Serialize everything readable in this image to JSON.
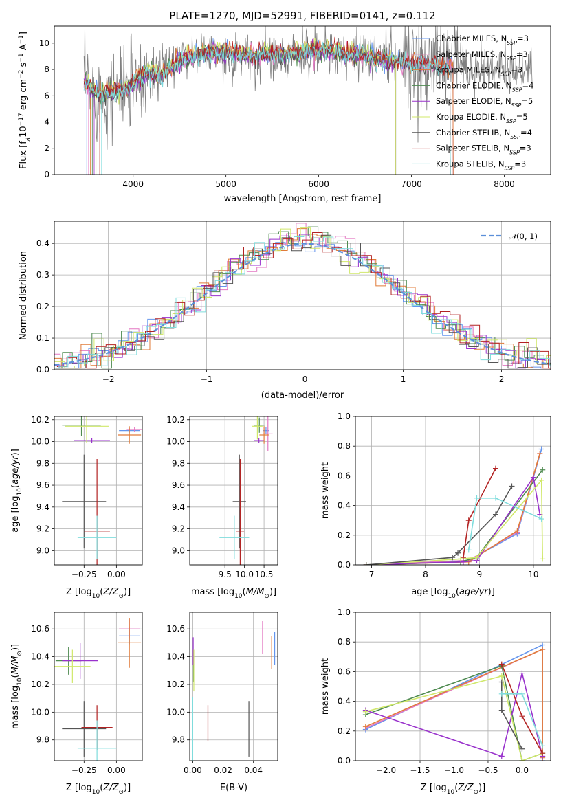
{
  "title": "PLATE=1270, MJD=52991, FIBERID=0141, z=0.112",
  "colors": {
    "chabrier_miles": "#6495ED",
    "salpeter_miles": "#E377C2",
    "kroupa_miles": "#E07B39",
    "chabrier_elodie": "#4E8A50",
    "salpeter_elodie": "#9932CC",
    "kroupa_elodie": "#D0E86A",
    "chabrier_stelib": "#555555",
    "salpeter_stelib": "#B22222",
    "kroupa_stelib": "#7FDCDC",
    "gaussian": "#5B8FD9",
    "data_spectrum": "#808080"
  },
  "chart_data": [
    {
      "id": "spectrum",
      "type": "line",
      "xlabel": "wavelength [Angstrom, rest frame]",
      "ylabel": "Flux [f",
      "xlim": [
        3150,
        8500
      ],
      "ylim": [
        0,
        11.3
      ],
      "xticks": [
        "4000",
        "5000",
        "6000",
        "7000",
        "8000"
      ],
      "yticks": [
        "0",
        "2",
        "4",
        "6",
        "8",
        "10"
      ],
      "legend": [
        {
          "label": "Chabrier MILES, N",
          "sub": "SSP",
          "suffix": "=3"
        },
        {
          "label": "Salpeter MILES, N",
          "sub": "SSP",
          "suffix": "=3"
        },
        {
          "label": "Kroupa MILES, N",
          "sub": "SSP",
          "suffix": "=3"
        },
        {
          "label": "Chabrier ELODIE, N",
          "sub": "SSP",
          "suffix": "=4"
        },
        {
          "label": "Salpeter ELODIE, N",
          "sub": "SSP",
          "suffix": "=5"
        },
        {
          "label": "Kroupa ELODIE, N",
          "sub": "SSP",
          "suffix": "=5"
        },
        {
          "label": "Chabrier STELIB, N",
          "sub": "SSP",
          "suffix": "=4"
        },
        {
          "label": "Salpeter STELIB, N",
          "sub": "SSP",
          "suffix": "=3"
        },
        {
          "label": "Kroupa STELIB, N",
          "sub": "SSP",
          "suffix": "=3"
        }
      ],
      "model_continuum": [
        [
          3470,
          7.2
        ],
        [
          3550,
          6.5
        ],
        [
          3650,
          6.0
        ],
        [
          3750,
          6.3
        ],
        [
          3850,
          6.4
        ],
        [
          3950,
          6.6
        ],
        [
          4050,
          7.3
        ],
        [
          4150,
          7.8
        ],
        [
          4300,
          7.5
        ],
        [
          4500,
          8.6
        ],
        [
          4700,
          9.1
        ],
        [
          4800,
          9.3
        ],
        [
          5000,
          9.3
        ],
        [
          5200,
          9.1
        ],
        [
          5400,
          9.2
        ],
        [
          5600,
          9.1
        ],
        [
          5800,
          9.3
        ],
        [
          6000,
          9.5
        ],
        [
          6200,
          9.4
        ],
        [
          6400,
          9.2
        ],
        [
          6600,
          8.9
        ],
        [
          6800,
          8.6
        ],
        [
          7000,
          8.5
        ],
        [
          7200,
          8.3
        ],
        [
          7400,
          8.2
        ]
      ],
      "data_continuum": [
        [
          3470,
          7.3
        ],
        [
          3600,
          6.0
        ],
        [
          3800,
          6.2
        ],
        [
          4000,
          6.8
        ],
        [
          4200,
          7.6
        ],
        [
          4400,
          8.3
        ],
        [
          4600,
          8.8
        ],
        [
          4800,
          9.3
        ],
        [
          5000,
          9.2
        ],
        [
          5300,
          9.1
        ],
        [
          5600,
          9.2
        ],
        [
          6000,
          9.4
        ],
        [
          6400,
          9.2
        ],
        [
          6800,
          8.8
        ],
        [
          7200,
          8.4
        ],
        [
          7600,
          8.2
        ],
        [
          8000,
          8.0
        ],
        [
          8300,
          7.9
        ]
      ]
    },
    {
      "id": "residuals",
      "type": "histogram",
      "xlabel": "(data-model)/error",
      "ylabel": "Normed distribution",
      "xlim": [
        -2.55,
        2.5
      ],
      "ylim": [
        0,
        0.47
      ],
      "xticks": [
        "−2",
        "−1",
        "0",
        "1",
        "2"
      ],
      "yticks": [
        "0.0",
        "0.1",
        "0.2",
        "0.3",
        "0.4"
      ],
      "legend_label": "(0, 1)",
      "gaussian": {
        "mean": 0,
        "sigma": 1
      },
      "bin_width": 0.1
    },
    {
      "id": "age-vs-Z",
      "type": "errorbar",
      "xlabel": "Z [log",
      "ylabel": "age  [log",
      "xlim": [
        -0.48,
        0.2
      ],
      "ylim": [
        8.87,
        10.23
      ],
      "xticks": [
        "−0.25",
        "0.00"
      ],
      "yticks": [
        "9.0",
        "9.2",
        "9.4",
        "9.6",
        "9.8",
        "10.0",
        "10.2"
      ],
      "points": [
        {
          "key": "chabrier_miles",
          "x": 0.1,
          "y": 10.1,
          "xerr": 0.08,
          "yerr": 0.02
        },
        {
          "key": "salpeter_miles",
          "x": 0.14,
          "y": 10.11,
          "xerr": 0.06,
          "yerr": 0.02
        },
        {
          "key": "kroupa_miles",
          "x": 0.1,
          "y": 10.06,
          "xerr": 0.09,
          "yerr": 0.08
        },
        {
          "key": "chabrier_elodie",
          "x": -0.27,
          "y": 10.15,
          "xerr": 0.15,
          "yerr": 0.1
        },
        {
          "key": "salpeter_elodie",
          "x": -0.19,
          "y": 10.01,
          "xerr": 0.14,
          "yerr": 0.02
        },
        {
          "key": "kroupa_elodie",
          "x": -0.23,
          "y": 10.14,
          "xerr": 0.17,
          "yerr": 0.15
        },
        {
          "key": "chabrier_stelib",
          "x": -0.25,
          "y": 9.45,
          "xerr": 0.17,
          "yerr": 0.43
        },
        {
          "key": "salpeter_stelib",
          "x": -0.15,
          "y": 9.18,
          "xerr": 0.1,
          "yerr": 0.66
        },
        {
          "key": "kroupa_stelib",
          "x": -0.15,
          "y": 9.12,
          "xerr": 0.15,
          "yerr": 0.2
        }
      ]
    },
    {
      "id": "age-vs-mass",
      "type": "errorbar",
      "xlabel": "mass [log",
      "ylabel": "",
      "xlim": [
        8.6,
        10.85
      ],
      "ylim": [
        8.87,
        10.23
      ],
      "xticks": [
        "9.5",
        "10.0",
        "10.5"
      ],
      "yticks": [
        "9.0",
        "9.2",
        "9.4",
        "9.6",
        "9.8",
        "10.0",
        "10.2"
      ],
      "points": [
        {
          "key": "chabrier_miles",
          "x": 10.55,
          "y": 10.1,
          "xerr": 0.08,
          "yerr": 0.03
        },
        {
          "key": "salpeter_miles",
          "x": 10.6,
          "y": 10.07,
          "xerr": 0.12,
          "yerr": 0.16
        },
        {
          "key": "kroupa_miles",
          "x": 10.5,
          "y": 10.06,
          "xerr": 0.12,
          "yerr": 0.08
        },
        {
          "key": "chabrier_elodie",
          "x": 10.38,
          "y": 10.15,
          "xerr": 0.13,
          "yerr": 0.07
        },
        {
          "key": "salpeter_elodie",
          "x": 10.37,
          "y": 10.01,
          "xerr": 0.12,
          "yerr": 0.02
        },
        {
          "key": "kroupa_elodie",
          "x": 10.33,
          "y": 10.14,
          "xerr": 0.13,
          "yerr": 0.12
        },
        {
          "key": "chabrier_stelib",
          "x": 9.87,
          "y": 9.45,
          "xerr": 0.17,
          "yerr": 0.43
        },
        {
          "key": "salpeter_stelib",
          "x": 9.89,
          "y": 9.18,
          "xerr": 0.1,
          "yerr": 0.66
        },
        {
          "key": "kroupa_stelib",
          "x": 9.74,
          "y": 9.12,
          "xerr": 0.38,
          "yerr": 0.2
        }
      ]
    },
    {
      "id": "mass-weight-vs-age",
      "type": "line",
      "xlabel": "age  [log",
      "ylabel": "mass weight",
      "xlim": [
        6.7,
        10.32
      ],
      "ylim": [
        0,
        1
      ],
      "xticks": [
        "7",
        "8",
        "9",
        "10"
      ],
      "yticks": [
        "0.0",
        "0.2",
        "0.4",
        "0.6",
        "0.8",
        "1.0"
      ],
      "series": [
        {
          "key": "chabrier_miles",
          "x": [
            6.9,
            8.8,
            9.7,
            10.15
          ],
          "y": [
            0.0,
            0.03,
            0.21,
            0.78
          ]
        },
        {
          "key": "salpeter_miles",
          "x": [
            6.9,
            8.8,
            9.7,
            10.12
          ],
          "y": [
            0.0,
            0.03,
            0.22,
            0.75
          ]
        },
        {
          "key": "kroupa_miles",
          "x": [
            6.9,
            8.8,
            9.7,
            10.12
          ],
          "y": [
            0.0,
            0.02,
            0.23,
            0.75
          ]
        },
        {
          "key": "chabrier_elodie",
          "x": [
            6.9,
            8.65,
            8.95,
            10.17
          ],
          "y": [
            0.0,
            0.02,
            0.05,
            0.64
          ]
        },
        {
          "key": "salpeter_elodie",
          "x": [
            6.9,
            8.7,
            8.95,
            10.0,
            10.12
          ],
          "y": [
            0.0,
            0.02,
            0.03,
            0.59,
            0.34
          ]
        },
        {
          "key": "kroupa_elodie",
          "x": [
            6.9,
            8.65,
            8.95,
            10.15,
            10.17
          ],
          "y": [
            0.0,
            0.04,
            0.05,
            0.57,
            0.04
          ]
        },
        {
          "key": "chabrier_stelib",
          "x": [
            6.9,
            8.5,
            8.6,
            9.3,
            9.6
          ],
          "y": [
            0.0,
            0.05,
            0.08,
            0.34,
            0.53
          ]
        },
        {
          "key": "salpeter_stelib",
          "x": [
            8.7,
            8.8,
            9.3
          ],
          "y": [
            0.05,
            0.3,
            0.65
          ]
        },
        {
          "key": "kroupa_stelib",
          "x": [
            8.8,
            8.95,
            9.3,
            10.15
          ],
          "y": [
            0.1,
            0.45,
            0.45,
            0.31
          ]
        }
      ]
    },
    {
      "id": "mass-vs-Z",
      "type": "errorbar",
      "xlabel": "Z [log",
      "ylabel": "mass [log",
      "xlim": [
        -0.48,
        0.2
      ],
      "ylim": [
        9.65,
        10.72
      ],
      "xticks": [
        "−0.25",
        "0.00"
      ],
      "yticks": [
        "9.8",
        "10.0",
        "10.2",
        "10.4",
        "10.6"
      ],
      "points": [
        {
          "key": "chabrier_miles",
          "x": 0.1,
          "y": 10.55,
          "xerr": 0.08,
          "yerr": 0.06
        },
        {
          "key": "salpeter_miles",
          "x": 0.1,
          "y": 10.6,
          "xerr": 0.08,
          "yerr": 0.07
        },
        {
          "key": "kroupa_miles",
          "x": 0.1,
          "y": 10.5,
          "xerr": 0.09,
          "yerr": 0.18
        },
        {
          "key": "chabrier_elodie",
          "x": -0.37,
          "y": 10.37,
          "xerr": 0.1,
          "yerr": 0.1
        },
        {
          "key": "salpeter_elodie",
          "x": -0.28,
          "y": 10.37,
          "xerr": 0.14,
          "yerr": 0.13
        },
        {
          "key": "kroupa_elodie",
          "x": -0.34,
          "y": 10.33,
          "xerr": 0.14,
          "yerr": 0.12
        },
        {
          "key": "chabrier_stelib",
          "x": -0.25,
          "y": 9.88,
          "xerr": 0.17,
          "yerr": 0.2
        },
        {
          "key": "salpeter_stelib",
          "x": -0.15,
          "y": 9.89,
          "xerr": 0.12,
          "yerr": 0.16
        },
        {
          "key": "kroupa_stelib",
          "x": -0.15,
          "y": 9.74,
          "xerr": 0.15,
          "yerr": 0.2
        }
      ]
    },
    {
      "id": "mass-vs-ebv",
      "type": "errorbar",
      "xlabel": "E(B-V)",
      "ylabel": "",
      "xlim": [
        -0.002,
        0.056
      ],
      "ylim": [
        9.65,
        10.72
      ],
      "xticks": [
        "0.00",
        "0.02",
        "0.04"
      ],
      "yticks": [
        "9.8",
        "10.0",
        "10.2",
        "10.4",
        "10.6"
      ],
      "points": [
        {
          "key": "chabrier_miles",
          "x": 0.054,
          "y": 10.46,
          "xerr": 0,
          "yerr": 0.12
        },
        {
          "key": "salpeter_miles",
          "x": 0.046,
          "y": 10.54,
          "xerr": 0,
          "yerr": 0.12
        },
        {
          "key": "kroupa_miles",
          "x": 0.052,
          "y": 10.43,
          "xerr": 0,
          "yerr": 0.12
        },
        {
          "key": "chabrier_elodie",
          "x": 0.0005,
          "y": 10.32,
          "xerr": 0,
          "yerr": 0.1
        },
        {
          "key": "salpeter_elodie",
          "x": 0.0003,
          "y": 10.44,
          "xerr": 0,
          "yerr": 0.1
        },
        {
          "key": "kroupa_elodie",
          "x": 0.0007,
          "y": 10.3,
          "xerr": 0,
          "yerr": 0.15
        },
        {
          "key": "chabrier_stelib",
          "x": 0.037,
          "y": 9.88,
          "xerr": 0,
          "yerr": 0.2
        },
        {
          "key": "salpeter_stelib",
          "x": 0.01,
          "y": 9.92,
          "xerr": 0,
          "yerr": 0.13
        },
        {
          "key": "kroupa_stelib",
          "x": 0.0,
          "y": 9.83,
          "xerr": 0,
          "yerr": 0.28
        }
      ]
    },
    {
      "id": "mass-weight-vs-Z",
      "type": "line",
      "xlabel": "Z [log",
      "ylabel": "mass weight",
      "xlim": [
        -2.45,
        0.42
      ],
      "ylim": [
        0,
        1
      ],
      "xticks": [
        "−2.0",
        "−1.5",
        "−1.0",
        "−0.5",
        "0.0"
      ],
      "yticks": [
        "0.0",
        "0.2",
        "0.4",
        "0.6",
        "0.8",
        "1.0"
      ],
      "series": [
        {
          "key": "chabrier_miles",
          "x": [
            -2.3,
            0.3,
            0.3
          ],
          "y": [
            0.21,
            0.78,
            0.0
          ]
        },
        {
          "key": "salpeter_miles",
          "x": [
            -2.3,
            0.3,
            0.3
          ],
          "y": [
            0.22,
            0.75,
            0.03
          ]
        },
        {
          "key": "kroupa_miles",
          "x": [
            -2.3,
            0.3,
            0.3
          ],
          "y": [
            0.23,
            0.75,
            0.02
          ]
        },
        {
          "key": "chabrier_elodie",
          "x": [
            -2.3,
            -0.3,
            0.0,
            0.3
          ],
          "y": [
            0.31,
            0.64,
            0.0,
            0.05
          ]
        },
        {
          "key": "salpeter_elodie",
          "x": [
            -2.3,
            -0.3,
            0.0,
            0.3
          ],
          "y": [
            0.34,
            0.03,
            0.59,
            0.03
          ]
        },
        {
          "key": "kroupa_elodie",
          "x": [
            -2.3,
            -0.3,
            0.0,
            0.3
          ],
          "y": [
            0.33,
            0.57,
            0.0,
            0.05
          ]
        },
        {
          "key": "chabrier_stelib",
          "x": [
            -0.3,
            -0.3,
            0.0
          ],
          "y": [
            0.53,
            0.34,
            0.08
          ]
        },
        {
          "key": "salpeter_stelib",
          "x": [
            -0.3,
            0.0,
            0.3
          ],
          "y": [
            0.65,
            0.3,
            0.05
          ]
        },
        {
          "key": "kroupa_stelib",
          "x": [
            -0.3,
            0.0,
            0.3
          ],
          "y": [
            0.45,
            0.45,
            0.1
          ]
        }
      ]
    }
  ]
}
